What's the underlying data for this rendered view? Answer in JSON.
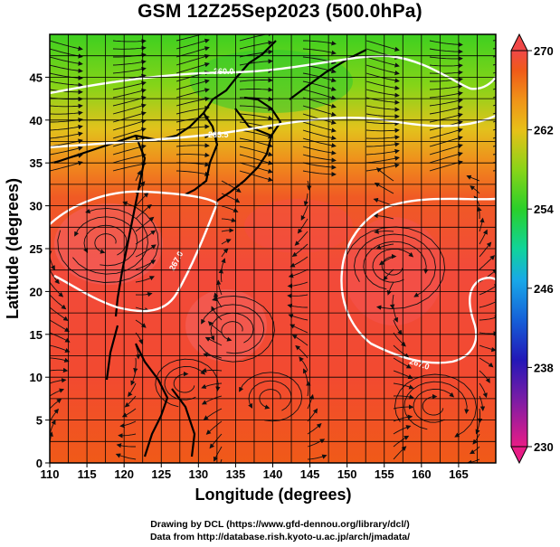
{
  "title": "GSM 12Z25Sep2023 (500.0hPa)",
  "map": {
    "x_axis": {
      "label": "Longitude (degrees)",
      "range": [
        110,
        170
      ],
      "ticks": [
        110,
        115,
        120,
        125,
        130,
        135,
        140,
        145,
        150,
        155,
        160,
        165
      ]
    },
    "y_axis": {
      "label": "Latitude  (degrees)",
      "range": [
        0,
        50
      ],
      "ticks": [
        0,
        5,
        10,
        15,
        20,
        25,
        30,
        35,
        40,
        45
      ]
    },
    "grid": true,
    "colorbar": {
      "min": 230,
      "max": 270,
      "labels": [
        270,
        262,
        254,
        246,
        238,
        230
      ],
      "colors": [
        "#e81c86",
        "#7a1ca6",
        "#2218b8",
        "#1560d8",
        "#18a8e8",
        "#10d49a",
        "#2ad02a",
        "#8ad418",
        "#e8c018",
        "#f09018",
        "#f05a18",
        "#f04848"
      ]
    },
    "contours": [
      {
        "label": "260.0",
        "lat": 46.5
      },
      {
        "label": "263.5",
        "lat": 41.0
      },
      {
        "label": "267.0",
        "lat": 26.0
      },
      {
        "label": "267.0",
        "lat": 12.0
      }
    ]
  },
  "credits": {
    "line1": "Drawing by DCL (https://www.gfd-dennou.org/library/dcl/)",
    "line2": "Data from http://database.rish.kyoto-u.ac.jp/arch/jmadata/"
  }
}
